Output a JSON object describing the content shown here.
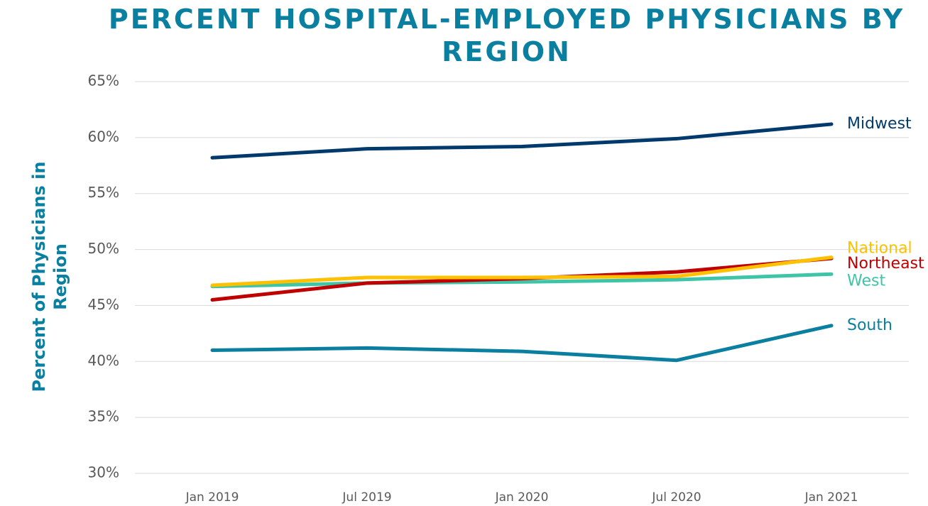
{
  "chart_data": {
    "type": "line",
    "title": "PERCENT HOSPITAL-EMPLOYED PHYSICIANS BY REGION",
    "ylabel": "Percent of Physicians in Region",
    "categories": [
      "Jan 2019",
      "Jul 2019",
      "Jan 2020",
      "Jul 2020",
      "Jan 2021"
    ],
    "series": [
      {
        "name": "Midwest",
        "color": "#003a6c",
        "values": [
          58.2,
          59.0,
          59.2,
          59.9,
          61.2
        ]
      },
      {
        "name": "National",
        "color": "#ffc000",
        "values": [
          46.8,
          47.5,
          47.5,
          47.6,
          49.3
        ]
      },
      {
        "name": "Northeast",
        "color": "#c00000",
        "values": [
          45.5,
          47.0,
          47.4,
          48.0,
          49.2
        ]
      },
      {
        "name": "West",
        "color": "#3ec5a8",
        "values": [
          46.7,
          47.0,
          47.1,
          47.3,
          47.8
        ]
      },
      {
        "name": "South",
        "color": "#0a7fa0",
        "values": [
          41.0,
          41.2,
          40.9,
          40.1,
          43.2
        ]
      }
    ],
    "ylim": [
      30,
      65
    ],
    "yticks": [
      {
        "value": 30,
        "label": "30%"
      },
      {
        "value": 35,
        "label": "35%"
      },
      {
        "value": 40,
        "label": "40%"
      },
      {
        "value": 45,
        "label": "45%"
      },
      {
        "value": 50,
        "label": "50%"
      },
      {
        "value": 55,
        "label": "55%"
      },
      {
        "value": 60,
        "label": "60%"
      },
      {
        "value": 65,
        "label": "65%"
      }
    ],
    "grid": true
  }
}
